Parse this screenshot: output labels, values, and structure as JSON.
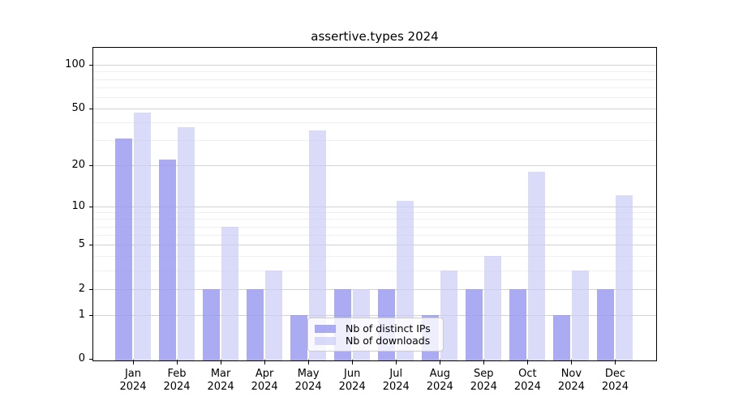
{
  "chart_data": {
    "type": "bar",
    "title": "assertive.types 2024",
    "categories": [
      "Jan",
      "Feb",
      "Mar",
      "Apr",
      "May",
      "Jun",
      "Jul",
      "Aug",
      "Sep",
      "Oct",
      "Nov",
      "Dec"
    ],
    "year": "2024",
    "series": [
      {
        "name": "Nb of distinct IPs",
        "color": "#9898f0",
        "opacity": 0.82,
        "values": [
          31,
          22,
          2,
          2,
          1,
          2,
          2,
          1,
          2,
          2,
          1,
          2
        ]
      },
      {
        "name": "Nb of downloads",
        "color": "#cacaf6",
        "opacity": 0.7,
        "values": [
          47,
          37,
          7,
          3,
          35,
          2,
          11,
          3,
          4,
          18,
          3,
          12
        ]
      }
    ],
    "y_axis": {
      "scale": "log10(1+x)",
      "tick_values": [
        0,
        1,
        2,
        5,
        10,
        20,
        50,
        100
      ],
      "tick_labels": [
        "0",
        "1",
        "2",
        "5",
        "10",
        "20",
        "50",
        "100"
      ],
      "major_gridlines": [
        1,
        2,
        5,
        10,
        20,
        50,
        100
      ],
      "minor_gridlines": [
        3,
        4,
        6,
        7,
        8,
        9,
        30,
        40,
        60,
        70,
        80,
        90
      ],
      "range": [
        0,
        110
      ]
    },
    "grid": true,
    "legend_position": "inside-bottom-center"
  }
}
